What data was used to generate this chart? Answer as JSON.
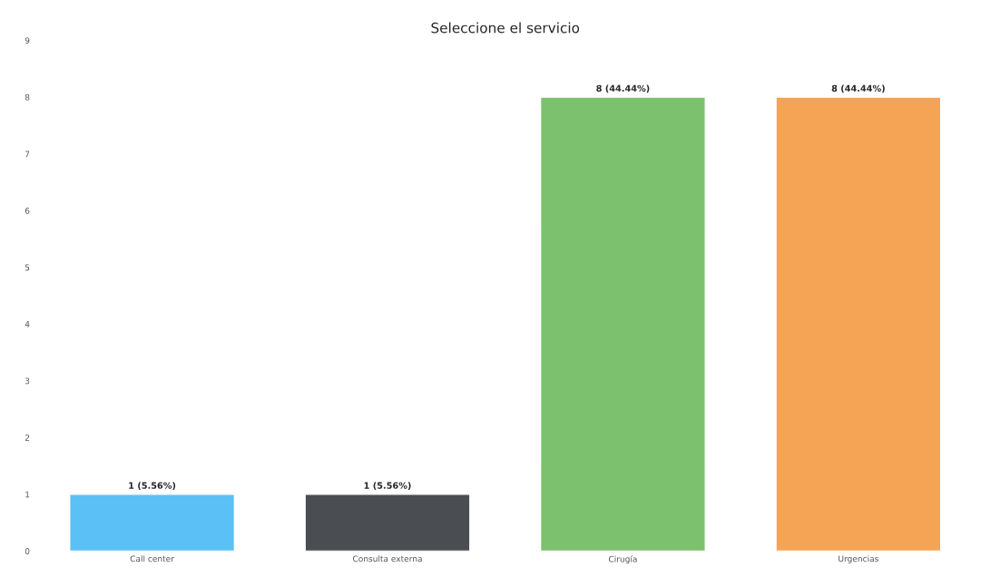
{
  "chart_data": {
    "type": "bar",
    "title": "Seleccione el servicio",
    "categories": [
      "Call center",
      "Consulta externa",
      "Cirugía",
      "Urgencias"
    ],
    "values": [
      1,
      1,
      8,
      8
    ],
    "colors": [
      "#5bc0f5",
      "#4a4d52",
      "#7cc26e",
      "#f5a455"
    ],
    "value_labels": [
      "1 (5.56%)",
      "1 (5.56%)",
      "8 (44.44%)",
      "8 (44.44%)"
    ],
    "ylim": [
      0,
      9
    ],
    "yticks": [
      0,
      1,
      2,
      3,
      4,
      5,
      6,
      7,
      8,
      9
    ],
    "grid": false,
    "legend": false
  }
}
